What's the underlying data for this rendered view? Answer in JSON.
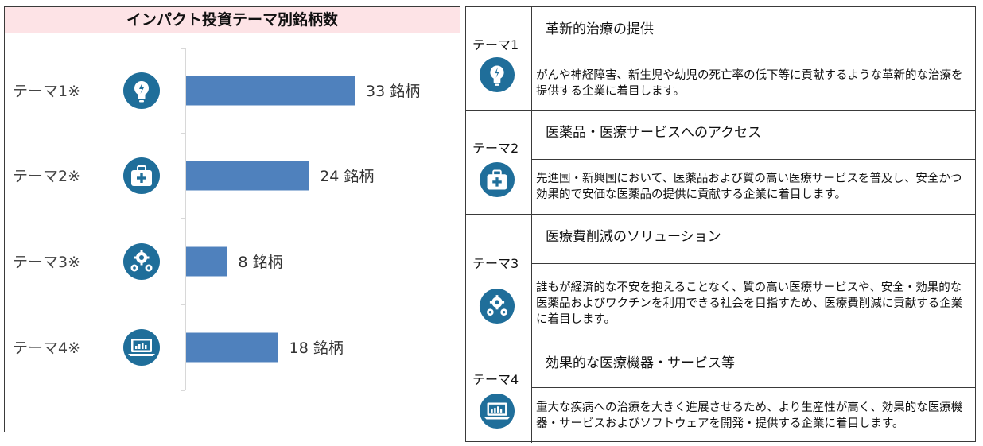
{
  "chart_data": {
    "type": "bar",
    "orientation": "horizontal",
    "title": "インパクト投資テーマ別銘柄数",
    "categories": [
      "テーマ1※",
      "テーマ2※",
      "テーマ3※",
      "テーマ4※"
    ],
    "values": [
      33,
      24,
      8,
      18
    ],
    "value_labels": [
      "33 銘柄",
      "24 銘柄",
      "8 銘柄",
      "18 銘柄"
    ],
    "category_icons": [
      "lightbulb-icon",
      "medical-kit-icon",
      "gears-icon",
      "laptop-chart-icon"
    ],
    "xlim": [
      0,
      40
    ],
    "grid": false,
    "legend": "none",
    "bar_color": "#4f81bd"
  },
  "colors": {
    "icon_fill": "#1f6e9a",
    "title_bg": "#fde3e6"
  },
  "themes": [
    {
      "label": "テーマ1",
      "icon": "lightbulb-icon",
      "heading": "革新的治療の提供",
      "description": "がんや神経障害、新生児や幼児の死亡率の低下等に貢献するような革新的な治療を提供する企業に着目します。"
    },
    {
      "label": "テーマ2",
      "icon": "medical-kit-icon",
      "heading": "医薬品・医療サービスへのアクセス",
      "description": "先進国・新興国において、医薬品および質の高い医療サービスを普及し、安全かつ効果的で安価な医薬品の提供に貢献する企業に着目します。"
    },
    {
      "label": "テーマ3",
      "icon": "gears-icon",
      "heading": "医療費削減のソリューション",
      "description": "誰もが経済的な不安を抱えることなく、質の高い医療サービスや、安全・効果的な医薬品およびワクチンを利用できる社会を目指すため、医療費削減に貢献する企業に着目します。"
    },
    {
      "label": "テーマ4",
      "icon": "laptop-chart-icon",
      "heading": "効果的な医療機器・サービス等",
      "description": "重大な疾病への治療を大きく進展させるため、より生産性が高く、効果的な医療機器・サービスおよびソフトウェアを開発・提供する企業に着目します。"
    }
  ]
}
